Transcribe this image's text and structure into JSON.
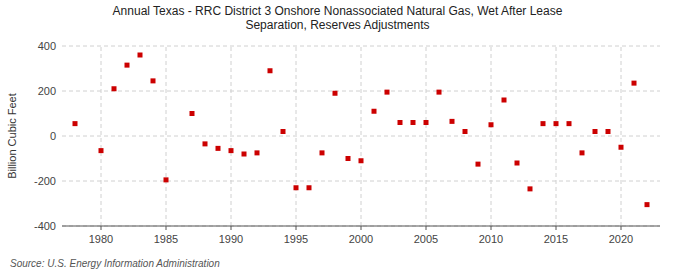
{
  "chart_data": {
    "type": "scatter",
    "title": "Annual Texas - RRC District 3 Onshore Nonassociated Natural Gas, Wet After Lease\nSeparation, Reserves Adjustments",
    "ylabel": "Billion Cubic Feet",
    "source": "Source: U.S. Energy Information Administration",
    "color": "#cc0000",
    "marker": "square",
    "x": [
      1978,
      1980,
      1981,
      1982,
      1983,
      1984,
      1985,
      1987,
      1988,
      1989,
      1990,
      1991,
      1992,
      1993,
      1994,
      1995,
      1996,
      1997,
      1998,
      1999,
      2000,
      2001,
      2002,
      2003,
      2004,
      2005,
      2006,
      2007,
      2008,
      2009,
      2010,
      2011,
      2012,
      2013,
      2014,
      2015,
      2016,
      2017,
      2018,
      2019,
      2020,
      2021,
      2022
    ],
    "values": [
      55,
      -65,
      210,
      315,
      360,
      245,
      -195,
      100,
      -35,
      -55,
      -65,
      -80,
      -75,
      290,
      20,
      -230,
      -230,
      -75,
      190,
      -100,
      -110,
      110,
      195,
      60,
      60,
      60,
      195,
      65,
      20,
      -125,
      50,
      160,
      -120,
      -235,
      55,
      55,
      55,
      -75,
      20,
      20,
      -50,
      235,
      -305
    ],
    "xlim": [
      1977,
      2023
    ],
    "ylim": [
      -400,
      400
    ],
    "xticks": [
      1980,
      1985,
      1990,
      1995,
      2000,
      2005,
      2010,
      2015,
      2020
    ],
    "yticks": [
      -400,
      -200,
      0,
      200,
      400
    ],
    "grid": true
  }
}
